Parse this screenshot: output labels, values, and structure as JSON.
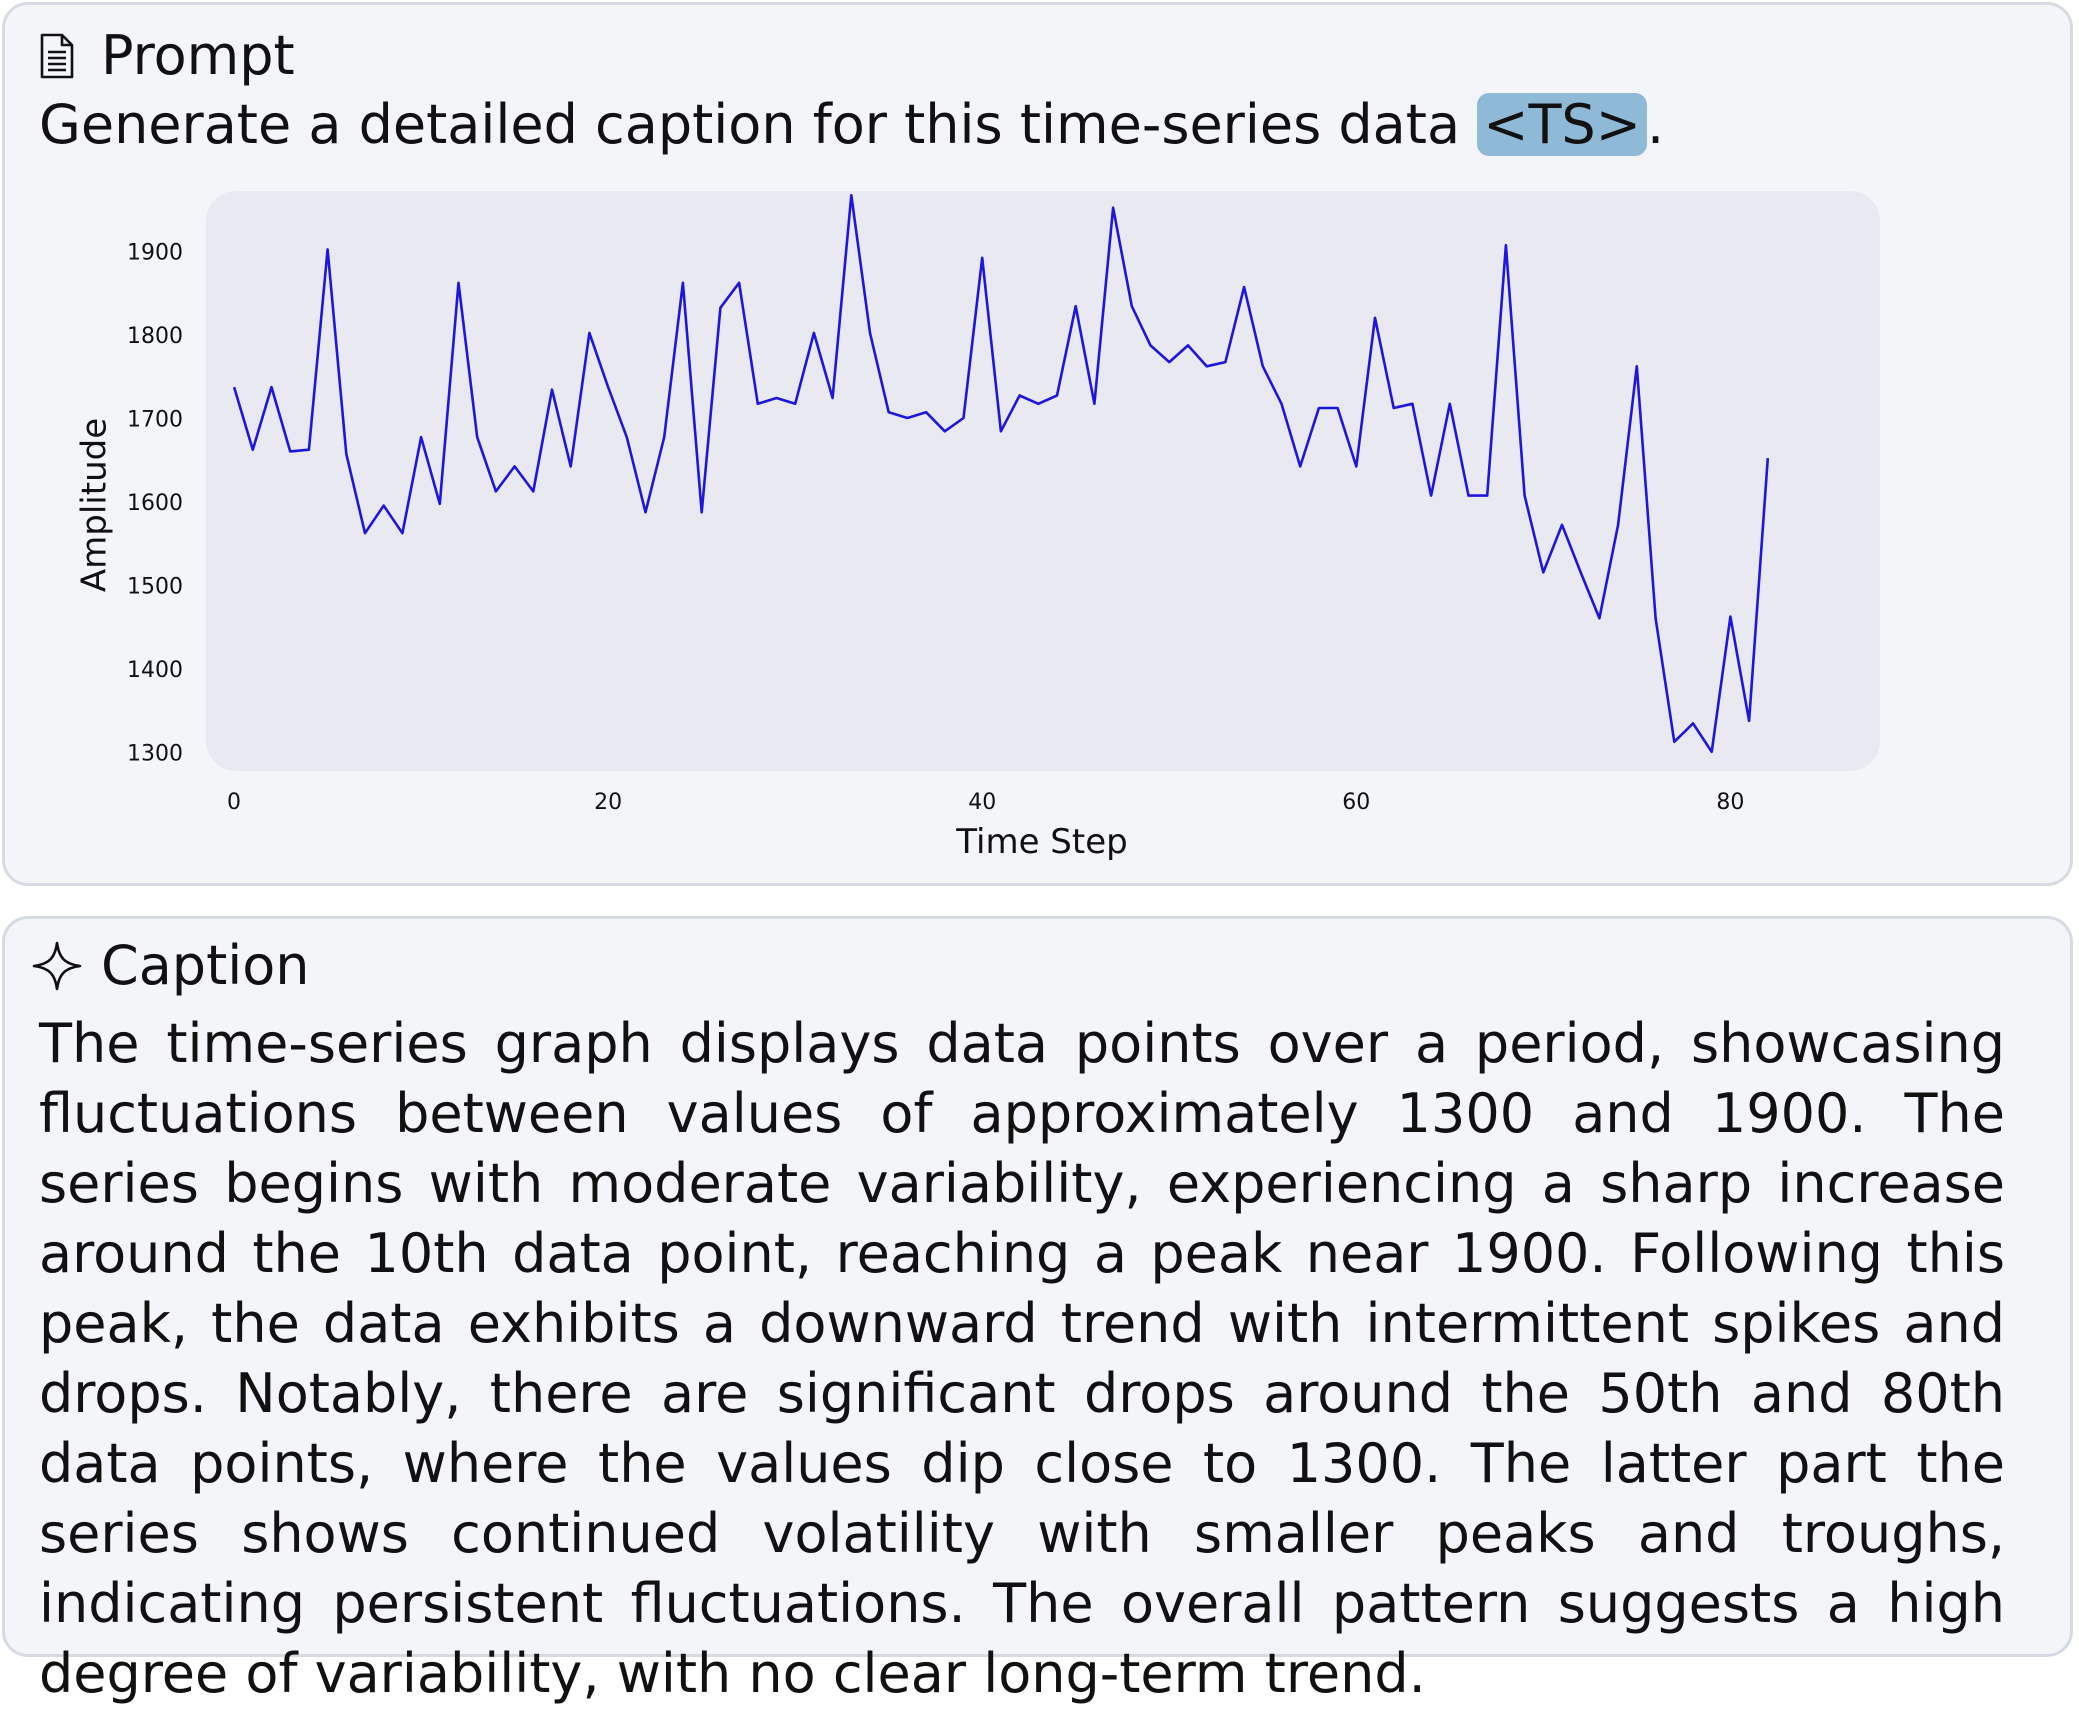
{
  "prompt": {
    "title": "Prompt",
    "icon": "document-icon",
    "text_before": "Generate a detailed caption for this time-series data ",
    "token": "<TS>",
    "text_after": "."
  },
  "chart_data": {
    "type": "line",
    "xlabel": "Time Step",
    "ylabel": "Amplitude",
    "xticks": [
      0,
      20,
      40,
      60,
      80
    ],
    "yticks": [
      1300,
      1400,
      1500,
      1600,
      1700,
      1800,
      1900
    ],
    "xlim": [
      -1.5,
      88
    ],
    "ylim": [
      1280,
      1975
    ],
    "grid": false,
    "line_color": "#1c16e0",
    "plot_bg": "#e9e9f2",
    "series": [
      {
        "values": [
          1740,
          1665,
          1740,
          1663,
          1665,
          1905,
          1660,
          1565,
          1598,
          1565,
          1680,
          1600,
          1865,
          1680,
          1615,
          1645,
          1615,
          1737,
          1645,
          1805,
          1740,
          1680,
          1590,
          1680,
          1865,
          1590,
          1835,
          1865,
          1720,
          1727,
          1720,
          1805,
          1727,
          1970,
          1805,
          1710,
          1703,
          1710,
          1687,
          1703,
          1895,
          1687,
          1730,
          1720,
          1730,
          1837,
          1720,
          1955,
          1837,
          1790,
          1770,
          1790,
          1765,
          1770,
          1860,
          1765,
          1720,
          1645,
          1715,
          1715,
          1645,
          1823,
          1715,
          1720,
          1610,
          1720,
          1610,
          1610,
          1910,
          1610,
          1518,
          1575,
          1518,
          1463,
          1575,
          1765,
          1463,
          1315,
          1337,
          1303,
          1465,
          1340,
          1655
        ]
      }
    ]
  },
  "caption": {
    "title": "Caption",
    "icon": "sparkle-icon",
    "text": "The time-series graph displays data points over a period, showcasing fluctuations between values of approximately 1300 and 1900. The series begins with moderate variability, experiencing a sharp increase around the 10th data point, reaching a peak near 1900. Following this peak, the data exhibits a downward trend with intermittent spikes and drops. Notably, there are significant drops around the 50th and 80th data points, where the values dip close to 1300. The latter part the series shows continued volatility with smaller peaks and troughs, indicating persistent fluctuations. The overall pattern suggests a high degree of variability, with no clear long-term trend."
  }
}
